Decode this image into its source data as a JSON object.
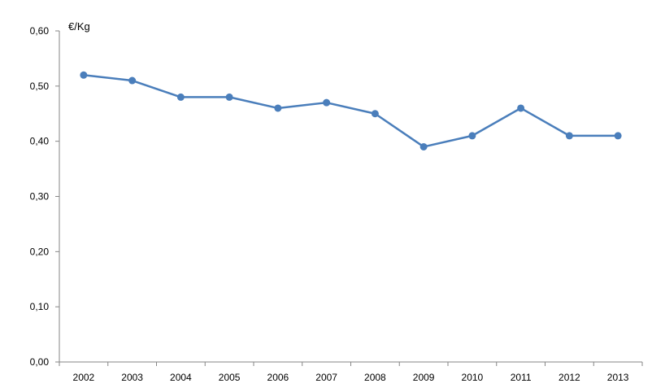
{
  "chart_data": {
    "type": "line",
    "categories": [
      "2002",
      "2003",
      "2004",
      "2005",
      "2006",
      "2007",
      "2008",
      "2009",
      "2010",
      "2011",
      "2012",
      "2013"
    ],
    "series": [
      {
        "values": [
          0.52,
          0.51,
          0.48,
          0.48,
          0.46,
          0.47,
          0.45,
          0.39,
          0.41,
          0.46,
          0.41,
          0.41
        ]
      }
    ],
    "unit_label": "€/Kg",
    "yticks": [
      "0,00",
      "0,10",
      "0,20",
      "0,30",
      "0,40",
      "0,50",
      "0,60"
    ],
    "ylim": [
      0,
      0.6
    ],
    "grid": false,
    "legend": "none",
    "colors": {
      "line": "#4a7ebb",
      "marker": "#4a7ebb",
      "axis": "#868686"
    }
  }
}
